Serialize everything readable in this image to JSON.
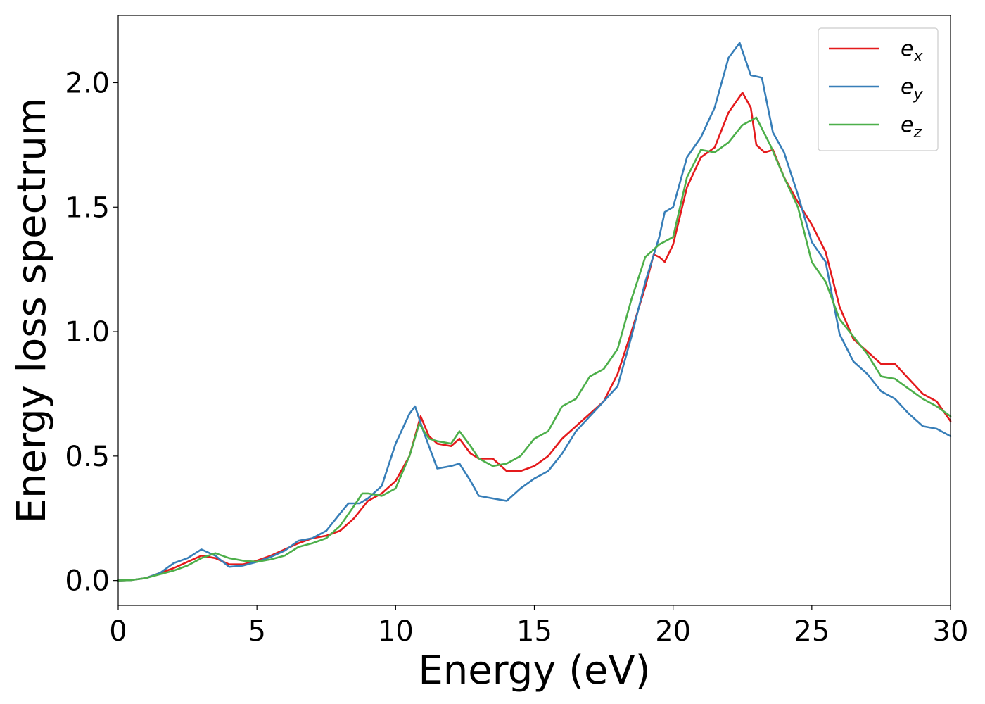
{
  "chart_data": {
    "type": "line",
    "xlabel": "Energy (eV)",
    "ylabel": "Energy loss spectrum",
    "xlim": [
      0,
      30
    ],
    "ylim": [
      -0.1,
      2.27
    ],
    "xticks": [
      0,
      5,
      10,
      15,
      20,
      25,
      30
    ],
    "xtick_labels": [
      "0",
      "5",
      "10",
      "15",
      "20",
      "25",
      "30"
    ],
    "yticks": [
      0.0,
      0.5,
      1.0,
      1.5,
      2.0
    ],
    "ytick_labels": [
      "0.0",
      "0.5",
      "1.0",
      "1.5",
      "2.0"
    ],
    "grid": false,
    "legend_position": "top-right",
    "series": [
      {
        "name": "e_x",
        "label_base": "e",
        "label_sub": "x",
        "color": "#e41a1c",
        "points": [
          [
            0,
            0.0
          ],
          [
            0.5,
            0.002
          ],
          [
            1.0,
            0.01
          ],
          [
            1.5,
            0.03
          ],
          [
            2.0,
            0.05
          ],
          [
            2.5,
            0.075
          ],
          [
            3.0,
            0.1
          ],
          [
            3.5,
            0.09
          ],
          [
            4.0,
            0.065
          ],
          [
            4.5,
            0.065
          ],
          [
            5.0,
            0.08
          ],
          [
            5.5,
            0.1
          ],
          [
            6.0,
            0.125
          ],
          [
            6.5,
            0.15
          ],
          [
            7.0,
            0.17
          ],
          [
            7.5,
            0.18
          ],
          [
            8.0,
            0.2
          ],
          [
            8.5,
            0.25
          ],
          [
            9.0,
            0.32
          ],
          [
            9.5,
            0.35
          ],
          [
            10.0,
            0.4
          ],
          [
            10.5,
            0.5
          ],
          [
            10.9,
            0.66
          ],
          [
            11.2,
            0.58
          ],
          [
            11.5,
            0.55
          ],
          [
            12.0,
            0.54
          ],
          [
            12.3,
            0.57
          ],
          [
            12.7,
            0.51
          ],
          [
            13.0,
            0.49
          ],
          [
            13.5,
            0.49
          ],
          [
            14.0,
            0.44
          ],
          [
            14.5,
            0.44
          ],
          [
            15.0,
            0.46
          ],
          [
            15.5,
            0.5
          ],
          [
            16.0,
            0.57
          ],
          [
            16.5,
            0.62
          ],
          [
            17.0,
            0.67
          ],
          [
            17.5,
            0.72
          ],
          [
            18.0,
            0.83
          ],
          [
            18.5,
            1.0
          ],
          [
            19.0,
            1.18
          ],
          [
            19.3,
            1.31
          ],
          [
            19.5,
            1.3
          ],
          [
            19.7,
            1.28
          ],
          [
            20.0,
            1.35
          ],
          [
            20.5,
            1.58
          ],
          [
            21.0,
            1.7
          ],
          [
            21.5,
            1.74
          ],
          [
            22.0,
            1.88
          ],
          [
            22.5,
            1.96
          ],
          [
            22.8,
            1.9
          ],
          [
            23.0,
            1.75
          ],
          [
            23.3,
            1.72
          ],
          [
            23.6,
            1.73
          ],
          [
            24.0,
            1.62
          ],
          [
            24.5,
            1.52
          ],
          [
            25.0,
            1.43
          ],
          [
            25.5,
            1.32
          ],
          [
            26.0,
            1.1
          ],
          [
            26.5,
            0.97
          ],
          [
            27.0,
            0.92
          ],
          [
            27.5,
            0.87
          ],
          [
            28.0,
            0.87
          ],
          [
            28.5,
            0.81
          ],
          [
            29.0,
            0.75
          ],
          [
            29.5,
            0.72
          ],
          [
            30.0,
            0.64
          ]
        ]
      },
      {
        "name": "e_y",
        "label_base": "e",
        "label_sub": "y",
        "color": "#377eb8",
        "points": [
          [
            0,
            0.0
          ],
          [
            0.5,
            0.002
          ],
          [
            1.0,
            0.01
          ],
          [
            1.5,
            0.03
          ],
          [
            2.0,
            0.07
          ],
          [
            2.5,
            0.09
          ],
          [
            3.0,
            0.125
          ],
          [
            3.5,
            0.1
          ],
          [
            4.0,
            0.055
          ],
          [
            4.5,
            0.06
          ],
          [
            5.0,
            0.075
          ],
          [
            5.5,
            0.095
          ],
          [
            6.0,
            0.12
          ],
          [
            6.5,
            0.16
          ],
          [
            7.0,
            0.17
          ],
          [
            7.5,
            0.2
          ],
          [
            8.0,
            0.27
          ],
          [
            8.3,
            0.31
          ],
          [
            8.7,
            0.31
          ],
          [
            9.0,
            0.33
          ],
          [
            9.5,
            0.38
          ],
          [
            10.0,
            0.55
          ],
          [
            10.5,
            0.67
          ],
          [
            10.7,
            0.7
          ],
          [
            11.0,
            0.6
          ],
          [
            11.5,
            0.45
          ],
          [
            12.0,
            0.46
          ],
          [
            12.3,
            0.47
          ],
          [
            12.7,
            0.4
          ],
          [
            13.0,
            0.34
          ],
          [
            13.5,
            0.33
          ],
          [
            14.0,
            0.32
          ],
          [
            14.5,
            0.37
          ],
          [
            15.0,
            0.41
          ],
          [
            15.5,
            0.44
          ],
          [
            16.0,
            0.51
          ],
          [
            16.5,
            0.6
          ],
          [
            17.0,
            0.66
          ],
          [
            17.5,
            0.72
          ],
          [
            18.0,
            0.78
          ],
          [
            18.5,
            0.98
          ],
          [
            19.0,
            1.2
          ],
          [
            19.5,
            1.38
          ],
          [
            19.7,
            1.48
          ],
          [
            20.0,
            1.5
          ],
          [
            20.5,
            1.7
          ],
          [
            21.0,
            1.78
          ],
          [
            21.5,
            1.9
          ],
          [
            22.0,
            2.1
          ],
          [
            22.4,
            2.16
          ],
          [
            22.8,
            2.03
          ],
          [
            23.2,
            2.02
          ],
          [
            23.6,
            1.8
          ],
          [
            24.0,
            1.72
          ],
          [
            24.5,
            1.55
          ],
          [
            25.0,
            1.36
          ],
          [
            25.5,
            1.28
          ],
          [
            26.0,
            0.99
          ],
          [
            26.5,
            0.88
          ],
          [
            27.0,
            0.83
          ],
          [
            27.5,
            0.76
          ],
          [
            28.0,
            0.73
          ],
          [
            28.5,
            0.67
          ],
          [
            29.0,
            0.62
          ],
          [
            29.5,
            0.61
          ],
          [
            30.0,
            0.58
          ]
        ]
      },
      {
        "name": "e_z",
        "label_base": "e",
        "label_sub": "z",
        "color": "#4daf4a",
        "points": [
          [
            0,
            0.0
          ],
          [
            0.5,
            0.002
          ],
          [
            1.0,
            0.01
          ],
          [
            1.5,
            0.025
          ],
          [
            2.0,
            0.04
          ],
          [
            2.5,
            0.06
          ],
          [
            3.0,
            0.09
          ],
          [
            3.5,
            0.11
          ],
          [
            4.0,
            0.09
          ],
          [
            4.5,
            0.08
          ],
          [
            5.0,
            0.075
          ],
          [
            5.5,
            0.085
          ],
          [
            6.0,
            0.1
          ],
          [
            6.5,
            0.135
          ],
          [
            7.0,
            0.15
          ],
          [
            7.5,
            0.17
          ],
          [
            8.0,
            0.22
          ],
          [
            8.5,
            0.3
          ],
          [
            8.8,
            0.35
          ],
          [
            9.0,
            0.35
          ],
          [
            9.5,
            0.34
          ],
          [
            10.0,
            0.37
          ],
          [
            10.5,
            0.5
          ],
          [
            10.85,
            0.63
          ],
          [
            11.2,
            0.57
          ],
          [
            11.5,
            0.56
          ],
          [
            12.0,
            0.55
          ],
          [
            12.3,
            0.6
          ],
          [
            12.7,
            0.54
          ],
          [
            13.0,
            0.49
          ],
          [
            13.5,
            0.46
          ],
          [
            14.0,
            0.47
          ],
          [
            14.5,
            0.5
          ],
          [
            15.0,
            0.57
          ],
          [
            15.5,
            0.6
          ],
          [
            16.0,
            0.7
          ],
          [
            16.5,
            0.73
          ],
          [
            17.0,
            0.82
          ],
          [
            17.5,
            0.85
          ],
          [
            18.0,
            0.93
          ],
          [
            18.5,
            1.13
          ],
          [
            19.0,
            1.3
          ],
          [
            19.5,
            1.35
          ],
          [
            20.0,
            1.38
          ],
          [
            20.5,
            1.62
          ],
          [
            21.0,
            1.73
          ],
          [
            21.5,
            1.72
          ],
          [
            22.0,
            1.76
          ],
          [
            22.5,
            1.83
          ],
          [
            23.0,
            1.86
          ],
          [
            23.5,
            1.75
          ],
          [
            24.0,
            1.62
          ],
          [
            24.5,
            1.5
          ],
          [
            25.0,
            1.28
          ],
          [
            25.5,
            1.2
          ],
          [
            26.0,
            1.05
          ],
          [
            26.5,
            0.98
          ],
          [
            27.0,
            0.91
          ],
          [
            27.5,
            0.82
          ],
          [
            28.0,
            0.81
          ],
          [
            28.5,
            0.77
          ],
          [
            29.0,
            0.73
          ],
          [
            29.5,
            0.7
          ],
          [
            30.0,
            0.66
          ]
        ]
      }
    ]
  }
}
